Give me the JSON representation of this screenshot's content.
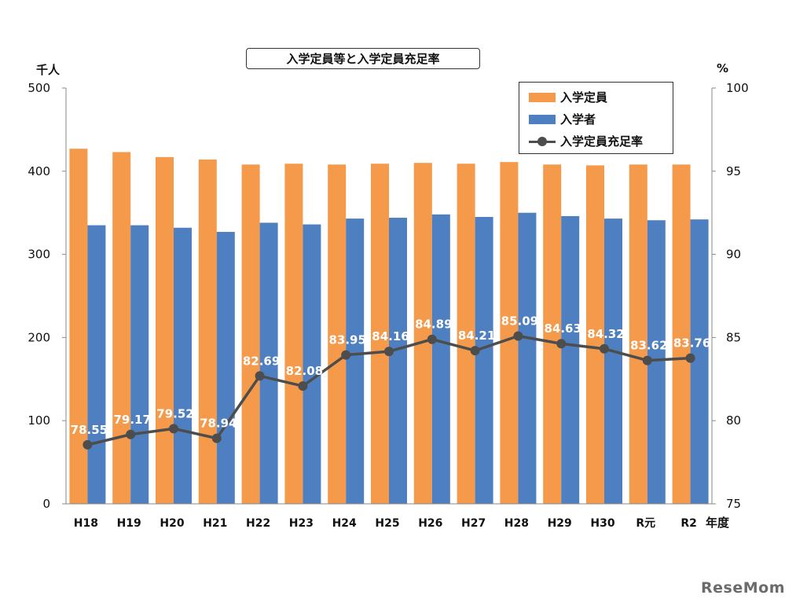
{
  "chart_data": {
    "type": "bar",
    "title": "入学定員等と入学定員充足率",
    "categories": [
      "H18",
      "H19",
      "H20",
      "H21",
      "H22",
      "H23",
      "H24",
      "H25",
      "H26",
      "H27",
      "H28",
      "H29",
      "H30",
      "R元",
      "R2"
    ],
    "series": [
      {
        "name": "入学定員",
        "type": "bar",
        "axis": "left",
        "color": "#f5994a",
        "values": [
          427,
          423,
          417,
          414,
          408,
          409,
          408,
          409,
          410,
          409,
          411,
          408,
          407,
          408,
          408
        ]
      },
      {
        "name": "入学者",
        "type": "bar",
        "axis": "left",
        "color": "#4e7fc0",
        "values": [
          335,
          335,
          332,
          327,
          338,
          336,
          343,
          344,
          348,
          345,
          350,
          346,
          343,
          341,
          342
        ]
      },
      {
        "name": "入学定員充足率",
        "type": "line",
        "axis": "right",
        "color": "#4d4d4d",
        "values": [
          78.55,
          79.17,
          79.52,
          78.94,
          82.69,
          82.08,
          83.95,
          84.16,
          84.89,
          84.21,
          85.09,
          84.63,
          84.32,
          83.62,
          83.76
        ],
        "labels": [
          "78.55",
          "79.17",
          "79.52",
          "78.94",
          "82.69",
          "82.08",
          "83.95",
          "84.16",
          "84.89",
          "84.21",
          "85.09",
          "84.63",
          "84.32",
          "83.62",
          "83.76"
        ]
      }
    ],
    "ylabel_left": "千人",
    "ylabel_right": "%",
    "xlabel": "年度",
    "ylim_left": [
      0,
      500
    ],
    "ylim_right": [
      75,
      100
    ],
    "yticks_left": [
      "0",
      "100",
      "200",
      "300",
      "400",
      "500"
    ],
    "yticks_right": [
      "75",
      "80",
      "85",
      "90",
      "95",
      "100"
    ],
    "legend_position": "top-right",
    "grid": false
  },
  "watermark": "ReseMom"
}
